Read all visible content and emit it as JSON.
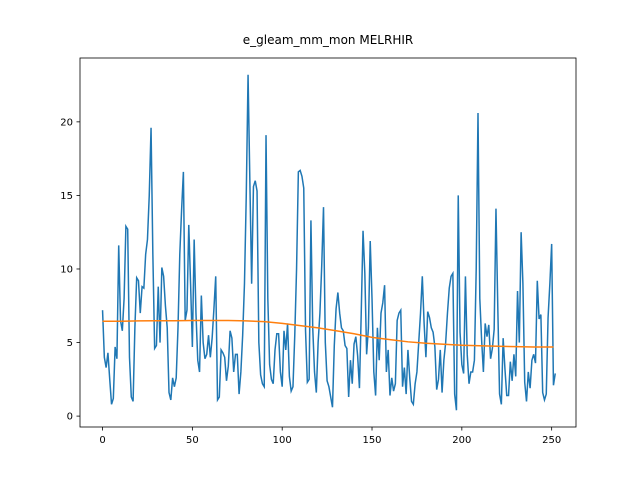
{
  "chart_data": {
    "type": "line",
    "title": "e_gleam_mm_mon MELRHIR",
    "xlim": [
      -12.55,
      263.55
    ],
    "xticks": [
      0,
      50,
      100,
      150,
      200,
      250
    ],
    "ylim": [
      -0.74,
      24.34
    ],
    "yticks": [
      0,
      5,
      10,
      15,
      20
    ],
    "series": [
      {
        "color": "#1f77b4",
        "values": [
          7.2,
          4.0,
          3.3,
          4.3,
          2.5,
          0.8,
          1.2,
          4.7,
          3.9,
          11.6,
          6.5,
          5.8,
          8.0,
          12.9,
          12.7,
          4.0,
          1.3,
          1.0,
          6.0,
          9.4,
          9.2,
          7.0,
          8.8,
          8.7,
          11.0,
          12.0,
          15.0,
          19.6,
          11.0,
          4.6,
          4.8,
          8.8,
          5.0,
          10.1,
          9.5,
          7.5,
          6.0,
          1.6,
          1.1,
          2.6,
          2.0,
          2.6,
          6.0,
          11.0,
          14.0,
          16.6,
          6.5,
          7.2,
          13.0,
          9.0,
          4.7,
          12.0,
          7.0,
          3.8,
          3.0,
          8.2,
          5.0,
          3.9,
          4.2,
          5.5,
          4.0,
          5.3,
          7.3,
          9.5,
          1.1,
          1.3,
          4.5,
          4.3,
          4.0,
          2.4,
          3.4,
          5.8,
          5.3,
          3.0,
          4.2,
          4.2,
          1.5,
          3.0,
          5.5,
          9.0,
          15.0,
          23.2,
          16.0,
          9.0,
          15.6,
          16.0,
          15.3,
          5.0,
          2.8,
          2.2,
          2.0,
          19.1,
          8.0,
          3.5,
          2.5,
          2.2,
          4.5,
          5.6,
          5.6,
          3.0,
          2.0,
          5.8,
          4.5,
          6.3,
          2.7,
          1.7,
          2.0,
          5.5,
          10.0,
          16.6,
          16.7,
          16.3,
          15.5,
          5.8,
          2.3,
          2.5,
          13.3,
          6.0,
          3.0,
          1.6,
          5.0,
          7.0,
          10.2,
          14.2,
          5.0,
          2.4,
          2.0,
          1.3,
          0.6,
          4.8,
          7.3,
          8.4,
          7.0,
          6.0,
          5.8,
          4.8,
          4.6,
          1.3,
          3.8,
          2.2,
          4.9,
          5.4,
          4.1,
          1.9,
          7.0,
          12.6,
          9.7,
          4.2,
          6.0,
          11.9,
          8.0,
          3.0,
          1.4,
          6.0,
          3.8,
          7.0,
          7.7,
          8.9,
          3.0,
          4.5,
          1.4,
          2.6,
          1.7,
          2.2,
          6.5,
          7.0,
          7.2,
          2.0,
          3.3,
          1.5,
          4.5,
          2.6,
          1.0,
          0.8,
          2.2,
          3.0,
          5.0,
          7.0,
          9.5,
          6.3,
          4.0,
          7.1,
          6.7,
          6.0,
          5.7,
          4.7,
          1.8,
          2.5,
          4.5,
          1.6,
          3.8,
          5.0,
          7.0,
          8.7,
          9.5,
          9.7,
          1.5,
          0.4,
          15.0,
          5.7,
          3.5,
          2.9,
          9.5,
          4.2,
          2.2,
          3.0,
          3.0,
          3.8,
          10.0,
          20.6,
          8.0,
          5.2,
          3.0,
          6.3,
          5.4,
          6.2,
          3.9,
          4.6,
          5.9,
          14.1,
          7.5,
          1.5,
          0.8,
          5.3,
          3.2,
          1.4,
          1.4,
          3.7,
          2.4,
          4.2,
          2.7,
          8.5,
          5.0,
          12.5,
          9.0,
          2.3,
          1.0,
          3.0,
          1.9,
          3.8,
          4.2,
          3.6,
          9.2,
          6.6,
          6.9,
          1.6,
          1.1,
          1.5,
          6.7,
          9.0,
          11.7,
          2.1,
          2.9
        ]
      },
      {
        "color": "#ff7f0e",
        "x": [
          0,
          10,
          20,
          30,
          40,
          50,
          60,
          70,
          80,
          90,
          100,
          110,
          120,
          130,
          140,
          150,
          160,
          170,
          180,
          190,
          200,
          210,
          220,
          230,
          240,
          250,
          251
        ],
        "values": [
          6.45,
          6.45,
          6.47,
          6.48,
          6.48,
          6.5,
          6.5,
          6.5,
          6.47,
          6.42,
          6.3,
          6.15,
          6.0,
          5.8,
          5.6,
          5.35,
          5.2,
          5.05,
          4.95,
          4.88,
          4.82,
          4.78,
          4.75,
          4.72,
          4.7,
          4.7,
          4.7
        ]
      }
    ]
  }
}
